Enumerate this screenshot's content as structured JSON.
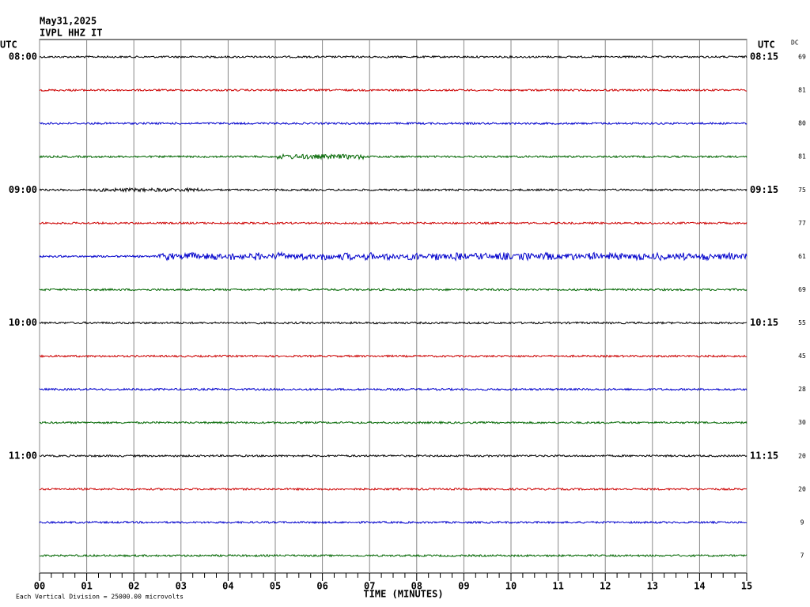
{
  "header": {
    "date": "May31,2025",
    "station": "IVPL HHZ IT"
  },
  "labels": {
    "utc_left": "UTC",
    "utc_right": "UTC",
    "dc": "DC"
  },
  "hours_left": [
    "08:00",
    "09:00",
    "10:00",
    "11:00"
  ],
  "hours_right": [
    "08:15",
    "09:15",
    "10:15",
    "11:15"
  ],
  "dc_values": [
    69,
    81,
    80,
    81,
    75,
    77,
    61,
    69,
    55,
    45,
    28,
    30,
    20,
    20,
    9,
    7
  ],
  "trace_colors": [
    "#000000",
    "#cc0000",
    "#0000cc",
    "#006600"
  ],
  "x_axis": {
    "ticks": [
      "00",
      "01",
      "02",
      "03",
      "04",
      "05",
      "06",
      "07",
      "08",
      "09",
      "10",
      "11",
      "12",
      "13",
      "14",
      "15"
    ],
    "title": "TIME (MINUTES)"
  },
  "footer": {
    "note": "Each Vertical Division = 25000.00 microvolts"
  }
}
